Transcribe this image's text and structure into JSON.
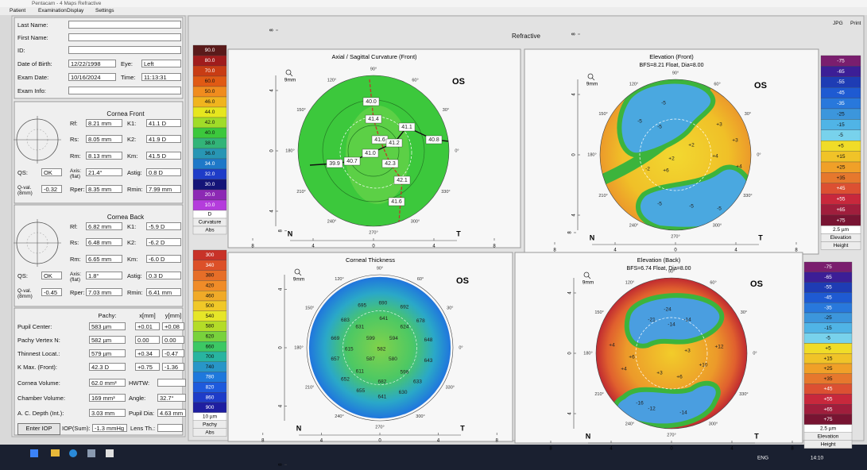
{
  "window": {
    "title": "Pentacam - 4 Maps Refractive",
    "menu": [
      "Patient",
      "Examination",
      "Display",
      "Settings"
    ],
    "header": "Refractive",
    "buttons": [
      "JPG",
      "Print"
    ]
  },
  "patient": [
    {
      "label": "Last Name:"
    },
    {
      "label": "First Name:"
    },
    {
      "label": "ID:"
    },
    {
      "label": "Date of Birth:",
      "value": "12/22/1998"
    },
    {
      "label": "Eye:",
      "value": "Left"
    },
    {
      "label": "Exam Date:",
      "value": "10/16/2024"
    },
    {
      "label": "Time:",
      "value": "11:13:31"
    },
    {
      "label": "Exam Info:"
    }
  ],
  "cornea_front": {
    "title": "Cornea Front",
    "rows": [
      [
        {
          "label": "Rf:",
          "value": "8.21 mm"
        },
        {
          "label": "K1:",
          "value": "41.1 D"
        }
      ],
      [
        {
          "label": "Rs:",
          "value": "8.05 mm"
        },
        {
          "label": "K2:",
          "value": "41.9 D"
        }
      ],
      [
        {
          "label": "Rm:",
          "value": "8.13 mm"
        },
        {
          "label": "Km:",
          "value": "41.5 D"
        }
      ],
      [
        {
          "label": "QS:",
          "value": "OK"
        },
        {
          "label": "Axis: (flat)",
          "value": "21.4°"
        },
        {
          "label": "Astig:",
          "value": "0.8 D"
        }
      ],
      [
        {
          "label": "Q-val. (8mm)",
          "value": "-0.32"
        },
        {
          "label": "Rper:",
          "value": "8.35 mm"
        },
        {
          "label": "Rmin:",
          "value": "7.99 mm"
        }
      ]
    ]
  },
  "cornea_back": {
    "title": "Cornea Back",
    "rows": [
      [
        {
          "label": "Rf:",
          "value": "6.82 mm"
        },
        {
          "label": "K1:",
          "value": "-5.9 D"
        }
      ],
      [
        {
          "label": "Rs:",
          "value": "6.48 mm"
        },
        {
          "label": "K2:",
          "value": "-6.2 D"
        }
      ],
      [
        {
          "label": "Rm:",
          "value": "6.65 mm"
        },
        {
          "label": "Km:",
          "value": "-6.0 D"
        }
      ],
      [
        {
          "label": "QS:",
          "value": "OK"
        },
        {
          "label": "Axis: (flat)",
          "value": "1.8°"
        },
        {
          "label": "Astig:",
          "value": "0.3 D"
        }
      ],
      [
        {
          "label": "Q-val. (8mm)",
          "value": "-0.45"
        },
        {
          "label": "Rper:",
          "value": "7.03 mm"
        },
        {
          "label": "Rmin:",
          "value": "6.41 mm"
        }
      ]
    ]
  },
  "pachy": {
    "headers": [
      "Pachy:",
      "x[mm]",
      "y[mm]"
    ],
    "rows": [
      {
        "label": "Pupil Center:",
        "values": [
          "583 µm",
          "+0.01",
          "+0.08"
        ]
      },
      {
        "label": "Pachy Vertex N:",
        "values": [
          "582 µm",
          "0.00",
          "0.00"
        ]
      },
      {
        "label": "Thinnest Locat.:",
        "values": [
          "579 µm",
          "+0.34",
          "-0.47"
        ]
      },
      {
        "label": "K Max. (Front):",
        "values": [
          "42.3 D",
          "+0.75",
          "-1.36"
        ]
      }
    ]
  },
  "volumes": [
    [
      {
        "label": "Cornea Volume:",
        "value": "62.0 mm³"
      },
      {
        "label": "HWTW:"
      }
    ],
    [
      {
        "label": "Chamber Volume:",
        "value": "169 mm³"
      },
      {
        "label": "Angle:",
        "value": "32.7°"
      }
    ],
    [
      {
        "label": "A. C. Depth (Int.):",
        "value": "3.03 mm"
      },
      {
        "label": "Pupil Dia:",
        "value": "4.63 mm"
      }
    ]
  ],
  "iop": {
    "button": "Enter IOP",
    "label": "IOP(Sum):",
    "value": "-1.3 mmHg",
    "lens": "Lens Th.:"
  },
  "map_axes": {
    "zoom": "9mm",
    "eye": "OS",
    "left": "N",
    "right": "T",
    "ticks": [
      "8",
      "4",
      "0",
      "4",
      "8"
    ],
    "angles": [
      "90°",
      "60°",
      "30°",
      "0°",
      "330°",
      "300°",
      "270°",
      "240°",
      "210°",
      "180°",
      "150°",
      "120°"
    ]
  },
  "maps": [
    {
      "title": "Axial / Sagittal Curvature (Front)",
      "labels": [
        "40.0",
        "41.4",
        "41.1",
        "41.6",
        "41.2",
        "40.8",
        "41.0",
        "40.7",
        "39.9",
        "42.3",
        "42.1",
        "41.6"
      ]
    },
    {
      "title": "Elevation (Front)",
      "subtitle": "BFS=8.21 Float, Dia=8.00",
      "labels": [
        "-5",
        "-5",
        "-5",
        "+3",
        "+2",
        "+4",
        "+2",
        "+3",
        "-2",
        "+6",
        "+4",
        "-5",
        "-5",
        "-5"
      ]
    },
    {
      "title": "Corneal Thickness",
      "labels": [
        "695",
        "690",
        "692",
        "683",
        "631",
        "641",
        "624",
        "678",
        "669",
        "599",
        "594",
        "648",
        "615",
        "582",
        "657",
        "587",
        "580",
        "643",
        "611",
        "598",
        "652",
        "682",
        "633",
        "655",
        "630",
        "641"
      ]
    },
    {
      "title": "Elevation (Back)",
      "subtitle": "BFS=6.74 Float, Dia=8.00",
      "labels": [
        "-24",
        "-21",
        "-14",
        "-14",
        "+4",
        "+6",
        "+3",
        "+12",
        "+4",
        "+10",
        "+3",
        "+6",
        "-16",
        "-12",
        "-14"
      ]
    }
  ],
  "scales": [
    {
      "values": [
        "90.0",
        "80.0",
        "70.0",
        "60.0",
        "50.0",
        "46.0",
        "44.0",
        "42.0",
        "40.0",
        "38.0",
        "36.0",
        "34.0",
        "32.0",
        "30.0",
        "20.0",
        "10.0"
      ],
      "colors": [
        "#5a1a1a",
        "#a01c1c",
        "#c83c14",
        "#e05a14",
        "#f08c1e",
        "#f0b41e",
        "#e6e61e",
        "#a0dc28",
        "#3cc83c",
        "#32b478",
        "#2896b4",
        "#1e78c8",
        "#1e3cc8",
        "#141478",
        "#8c28b4",
        "#b43cdc"
      ],
      "unit": "D",
      "name": "Curvature",
      "mode": "Abs"
    },
    {
      "values": [
        "-75",
        "-65",
        "-55",
        "-45",
        "-35",
        "-25",
        "-15",
        "-5",
        "+5",
        "+15",
        "+25",
        "+35",
        "+45",
        "+55",
        "+65",
        "+75"
      ],
      "colors": [
        "#7a1e6e",
        "#3c1e96",
        "#1e3cb4",
        "#1e5ad2",
        "#2878dc",
        "#3c96dc",
        "#50b4e6",
        "#78d2ec",
        "#f0dc28",
        "#f0c328",
        "#f0a028",
        "#e6782d",
        "#dc5032",
        "#c8283c",
        "#a01e3c",
        "#781432"
      ],
      "unit": "2.5 µm",
      "name": "Elevation",
      "mode": "Height"
    },
    {
      "values": [
        "300",
        "340",
        "380",
        "420",
        "460",
        "500",
        "540",
        "580",
        "620",
        "660",
        "700",
        "740",
        "780",
        "820",
        "860",
        "900"
      ],
      "colors": [
        "#c83228",
        "#dc5028",
        "#e66e28",
        "#f08c28",
        "#f0aa28",
        "#f0c828",
        "#e6e628",
        "#b4dc28",
        "#78d23c",
        "#3cc864",
        "#28b4a0",
        "#2896c8",
        "#1e78dc",
        "#1e5adc",
        "#1e3cc8",
        "#1e1ea0"
      ],
      "unit": "10 µm",
      "name": "Pachy",
      "mode": "Abs"
    },
    {
      "values": [
        "-75",
        "-65",
        "-55",
        "-45",
        "-35",
        "-25",
        "-15",
        "-5",
        "+5",
        "+15",
        "+25",
        "+35",
        "+45",
        "+55",
        "+65",
        "+75"
      ],
      "colors": [
        "#7a1e6e",
        "#3c1e96",
        "#1e3cb4",
        "#1e5ad2",
        "#2878dc",
        "#3c96dc",
        "#50b4e6",
        "#78d2ec",
        "#f0dc28",
        "#f0c328",
        "#f0a028",
        "#e6782d",
        "#dc5032",
        "#c8283c",
        "#a01e3c",
        "#781432"
      ],
      "unit": "2.5 µm",
      "name": "Elevation",
      "mode": "Height"
    }
  ],
  "taskbar": {
    "language": "ENG",
    "time": "14:10"
  }
}
